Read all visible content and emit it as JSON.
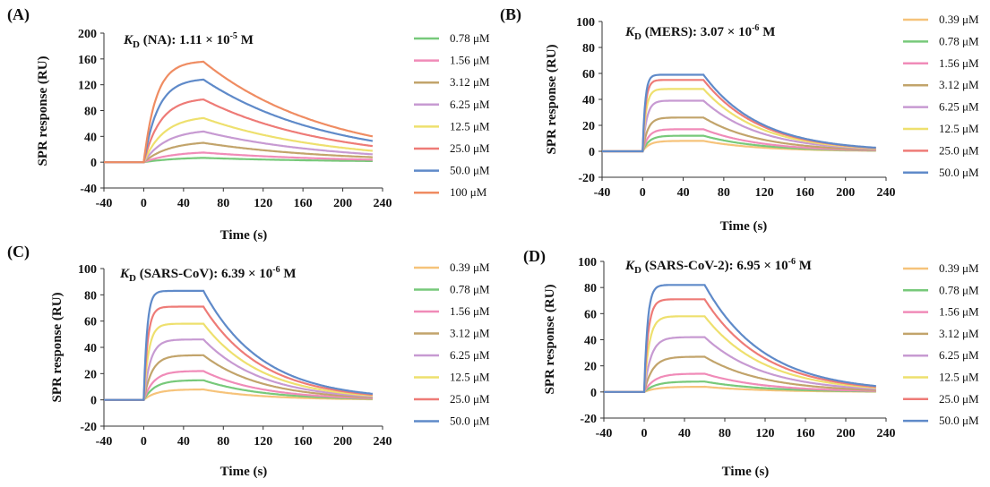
{
  "chart_data": [
    {
      "type": "line",
      "panel_label": "(A)",
      "kd": {
        "prefix": "K",
        "sub": "D",
        "rest": " (NA): 1.11 × 10",
        "exp": "-5",
        "unit": " M"
      },
      "xlabel": "Time (s)",
      "ylabel": "SPR response (RU)",
      "xlim": [
        -40,
        240
      ],
      "ylim": [
        -40,
        200
      ],
      "xticks": [
        -40,
        0,
        40,
        80,
        120,
        160,
        200,
        240
      ],
      "yticks": [
        -40,
        0,
        40,
        80,
        120,
        160,
        200
      ],
      "legend_position": "right",
      "kinetics": {
        "baseline_start": -40,
        "injection_start": 0,
        "injection_end": 60,
        "end": 230
      },
      "series": [
        {
          "name": "0.78 μM",
          "color": "#77c97a",
          "plateau": 8,
          "ka": 0.03,
          "kd": 0.008
        },
        {
          "name": "1.56 μM",
          "color": "#f08bb8",
          "plateau": 17,
          "ka": 0.035,
          "kd": 0.008
        },
        {
          "name": "3.12 μM",
          "color": "#c2a46b",
          "plateau": 33,
          "ka": 0.04,
          "kd": 0.008
        },
        {
          "name": "6.25 μM",
          "color": "#c79ad2",
          "plateau": 51,
          "ka": 0.045,
          "kd": 0.008
        },
        {
          "name": "12.5 μM",
          "color": "#eee06e",
          "plateau": 72,
          "ka": 0.05,
          "kd": 0.008
        },
        {
          "name": "25.0 μM",
          "color": "#ee7b77",
          "plateau": 100,
          "ka": 0.06,
          "kd": 0.008
        },
        {
          "name": "50.0 μM",
          "color": "#5f8ac9",
          "plateau": 130,
          "ka": 0.07,
          "kd": 0.008
        },
        {
          "name": "100 μM",
          "color": "#ef8c62",
          "plateau": 157,
          "ka": 0.08,
          "kd": 0.008
        }
      ]
    },
    {
      "type": "line",
      "panel_label": "(B)",
      "kd": {
        "prefix": "K",
        "sub": "D",
        "rest": " (MERS): 3.07 × 10",
        "exp": "-6",
        "unit": " M"
      },
      "xlabel": "Time (s)",
      "ylabel": "SPR response (RU)",
      "xlim": [
        -40,
        240
      ],
      "ylim": [
        -20,
        100
      ],
      "xticks": [
        -40,
        0,
        40,
        80,
        120,
        160,
        200,
        240
      ],
      "yticks": [
        -20,
        0,
        20,
        40,
        60,
        80,
        100
      ],
      "legend_position": "right",
      "kinetics": {
        "baseline_start": -40,
        "injection_start": 0,
        "injection_end": 60,
        "end": 230
      },
      "series": [
        {
          "name": "0.39 μM",
          "color": "#f6c37a",
          "plateau": 8,
          "ka": 0.15,
          "kd": 0.018
        },
        {
          "name": "0.78 μM",
          "color": "#77c97a",
          "plateau": 12,
          "ka": 0.16,
          "kd": 0.018
        },
        {
          "name": "1.56 μM",
          "color": "#f08bb8",
          "plateau": 17,
          "ka": 0.18,
          "kd": 0.018
        },
        {
          "name": "3.12 μM",
          "color": "#c2a46b",
          "plateau": 26,
          "ka": 0.2,
          "kd": 0.018
        },
        {
          "name": "6.25 μM",
          "color": "#c79ad2",
          "plateau": 39,
          "ka": 0.25,
          "kd": 0.018
        },
        {
          "name": "12.5 μM",
          "color": "#eee06e",
          "plateau": 48,
          "ka": 0.3,
          "kd": 0.018
        },
        {
          "name": "25.0 μM",
          "color": "#ee7b77",
          "plateau": 55,
          "ka": 0.35,
          "kd": 0.018
        },
        {
          "name": "50.0 μM",
          "color": "#5f8ac9",
          "plateau": 59,
          "ka": 0.4,
          "kd": 0.018
        }
      ]
    },
    {
      "type": "line",
      "panel_label": "(C)",
      "kd": {
        "prefix": "K",
        "sub": "D",
        "rest": " (SARS-CoV): 6.39 × 10",
        "exp": "-6",
        "unit": " M"
      },
      "xlabel": "Time (s)",
      "ylabel": "SPR response (RU)",
      "xlim": [
        -40,
        240
      ],
      "ylim": [
        -20,
        100
      ],
      "xticks": [
        -40,
        0,
        40,
        80,
        120,
        160,
        200,
        240
      ],
      "yticks": [
        -20,
        0,
        20,
        40,
        60,
        80,
        100
      ],
      "legend_position": "right",
      "kinetics": {
        "baseline_start": -40,
        "injection_start": 0,
        "injection_end": 60,
        "end": 230
      },
      "series": [
        {
          "name": "0.39 μM",
          "color": "#f6c37a",
          "plateau": 8,
          "ka": 0.08,
          "kd": 0.017
        },
        {
          "name": "0.78 μM",
          "color": "#77c97a",
          "plateau": 15,
          "ka": 0.09,
          "kd": 0.017
        },
        {
          "name": "1.56 μM",
          "color": "#f08bb8",
          "plateau": 22,
          "ka": 0.1,
          "kd": 0.017
        },
        {
          "name": "3.12 μM",
          "color": "#c2a46b",
          "plateau": 34,
          "ka": 0.12,
          "kd": 0.017
        },
        {
          "name": "6.25 μM",
          "color": "#c79ad2",
          "plateau": 46,
          "ka": 0.15,
          "kd": 0.017
        },
        {
          "name": "12.5 μM",
          "color": "#eee06e",
          "plateau": 58,
          "ka": 0.2,
          "kd": 0.017
        },
        {
          "name": "25.0 μM",
          "color": "#ee7b77",
          "plateau": 71,
          "ka": 0.25,
          "kd": 0.017
        },
        {
          "name": "50.0 μM",
          "color": "#5f8ac9",
          "plateau": 83,
          "ka": 0.3,
          "kd": 0.017
        }
      ]
    },
    {
      "type": "line",
      "panel_label": "(D)",
      "kd": {
        "prefix": "K",
        "sub": "D",
        "rest": " (SARS-CoV-2): 6.95 × 10",
        "exp": "-6",
        "unit": " M"
      },
      "xlabel": "Time (s)",
      "ylabel": "SPR response (RU)",
      "xlim": [
        -40,
        240
      ],
      "ylim": [
        -20,
        100
      ],
      "xticks": [
        -40,
        0,
        40,
        80,
        120,
        160,
        200,
        240
      ],
      "yticks": [
        -20,
        0,
        20,
        40,
        60,
        80,
        100
      ],
      "legend_position": "right",
      "kinetics": {
        "baseline_start": -40,
        "injection_start": 0,
        "injection_end": 60,
        "end": 230
      },
      "series": [
        {
          "name": "0.39 μM",
          "color": "#f6c37a",
          "plateau": 4,
          "ka": 0.08,
          "kd": 0.017
        },
        {
          "name": "0.78 μM",
          "color": "#77c97a",
          "plateau": 8,
          "ka": 0.09,
          "kd": 0.017
        },
        {
          "name": "1.56 μM",
          "color": "#f08bb8",
          "plateau": 14,
          "ka": 0.1,
          "kd": 0.017
        },
        {
          "name": "3.12 μM",
          "color": "#c2a46b",
          "plateau": 27,
          "ka": 0.12,
          "kd": 0.017
        },
        {
          "name": "6.25 μM",
          "color": "#c79ad2",
          "plateau": 42,
          "ka": 0.15,
          "kd": 0.017
        },
        {
          "name": "12.5 μM",
          "color": "#eee06e",
          "plateau": 58,
          "ka": 0.2,
          "kd": 0.017
        },
        {
          "name": "25.0 μM",
          "color": "#ee7b77",
          "plateau": 71,
          "ka": 0.25,
          "kd": 0.017
        },
        {
          "name": "50.0 μM",
          "color": "#5f8ac9",
          "plateau": 82,
          "ka": 0.3,
          "kd": 0.017
        }
      ]
    }
  ]
}
